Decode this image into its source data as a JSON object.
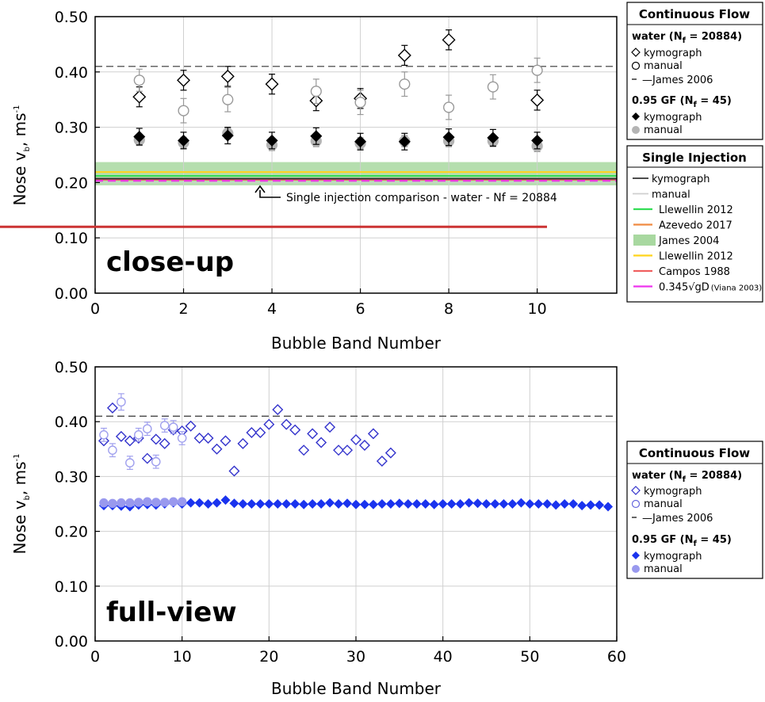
{
  "closeup": {
    "chart_data": {
      "type": "scatter",
      "panel_label": "close-up",
      "xlabel": "Bubble Band Number",
      "ylabel": "Nose v",
      "ylabel_sub": "b",
      "ylabel_unit": ", ms",
      "ylabel_sup": "-1",
      "xlim": [
        0,
        11.8
      ],
      "ylim": [
        0,
        0.5
      ],
      "xticks": [
        0,
        2,
        4,
        6,
        8,
        10
      ],
      "yticks": [
        "0.00",
        "0.10",
        "0.20",
        "0.30",
        "0.40",
        "0.50"
      ],
      "grid": true,
      "reference_lines": [
        {
          "name": "James 2006",
          "y": 0.41,
          "style": "dashed",
          "color": "#333333"
        }
      ],
      "reference_band": {
        "name": "James 2004",
        "y": [
          0.195,
          0.237
        ],
        "color": "#a8d8a0"
      },
      "single_injection_lines": [
        {
          "name": "Llewellin 2012 (green)",
          "y": 0.212,
          "color": "#33dd55"
        },
        {
          "name": "Azevedo 2017",
          "y": 0.207,
          "color": "#f08a40"
        },
        {
          "name": "Llewellin 2012 (yellow)",
          "y": 0.219,
          "color": "#ffd41a"
        },
        {
          "name": "Campos 1988",
          "y": 0.205,
          "color": "#f06060"
        },
        {
          "name": "0.345√gD",
          "y": 0.203,
          "color": "#ee33ee",
          "style": "dashed"
        },
        {
          "name": "kymograph",
          "y": 0.207,
          "color": "#333333"
        }
      ],
      "annotation": "Single injection comparison - water - Nf = 20884",
      "series": [
        {
          "name": "water kymograph",
          "marker": "open-diamond",
          "color": "#000000",
          "x": [
            1,
            2,
            3,
            4,
            5,
            6,
            7,
            8,
            10
          ],
          "y": [
            0.355,
            0.385,
            0.392,
            0.378,
            0.348,
            0.352,
            0.43,
            0.458,
            0.349
          ],
          "err": [
            0.018,
            0.018,
            0.018,
            0.018,
            0.018,
            0.018,
            0.018,
            0.018,
            0.018
          ]
        },
        {
          "name": "water manual",
          "marker": "open-circle",
          "color": "#999999",
          "x": [
            1,
            2,
            3,
            5,
            6,
            7,
            8,
            9,
            10
          ],
          "y": [
            0.385,
            0.33,
            0.35,
            0.365,
            0.345,
            0.378,
            0.336,
            0.373,
            0.403
          ],
          "err": [
            0.02,
            0.022,
            0.022,
            0.022,
            0.022,
            0.022,
            0.022,
            0.022,
            0.022
          ]
        },
        {
          "name": "0.95 GF manual",
          "marker": "filled-circle",
          "color": "#b4b4b4",
          "x": [
            1,
            2,
            3,
            4,
            5,
            6,
            7,
            8,
            9,
            10
          ],
          "y": [
            0.277,
            0.272,
            0.289,
            0.268,
            0.275,
            0.271,
            0.275,
            0.275,
            0.275,
            0.266
          ],
          "err": [
            0.01,
            0.01,
            0.01,
            0.01,
            0.01,
            0.01,
            0.01,
            0.01,
            0.01,
            0.01
          ]
        },
        {
          "name": "0.95 GF kymograph",
          "marker": "filled-diamond",
          "color": "#000000",
          "x": [
            1,
            2,
            3,
            4,
            5,
            6,
            7,
            8,
            9,
            10
          ],
          "y": [
            0.283,
            0.276,
            0.285,
            0.276,
            0.284,
            0.274,
            0.274,
            0.282,
            0.281,
            0.276
          ],
          "err": [
            0.015,
            0.015,
            0.015,
            0.015,
            0.015,
            0.015,
            0.015,
            0.015,
            0.015,
            0.015
          ]
        }
      ]
    },
    "legend_cf": {
      "title": "Continuous Flow",
      "water_head": "water (N",
      "water_sub": "f",
      "water_tail": " = 20884)",
      "items_water": [
        "kymograph",
        "manual",
        "—James 2006"
      ],
      "gf_head": "0.95 GF (N",
      "gf_sub": "f",
      "gf_tail": " = 45)",
      "items_gf": [
        "kymograph",
        "manual"
      ]
    },
    "legend_si": {
      "title": "Single Injection",
      "items": [
        {
          "label": "kymograph",
          "color": "#333333"
        },
        {
          "label": "manual",
          "color": "#cfcfcf"
        },
        {
          "label": "Llewellin 2012",
          "color": "#33dd55"
        },
        {
          "label": "Azevedo 2017",
          "color": "#f08a40"
        },
        {
          "label": "James 2004",
          "color": "#a8d8a0"
        },
        {
          "label": "Llewellin 2012",
          "color": "#ffd41a"
        },
        {
          "label": "Campos 1988",
          "color": "#f06060"
        },
        {
          "label": "0.345√gD",
          "color": "#ee33ee",
          "note": "(Viana 2003)"
        }
      ]
    }
  },
  "fullview": {
    "chart_data": {
      "type": "scatter",
      "panel_label": "full-view",
      "xlabel": "Bubble Band Number",
      "ylabel": "Nose v",
      "ylabel_sub": "b",
      "ylabel_unit": ", ms",
      "ylabel_sup": "-1",
      "xlim": [
        0,
        60
      ],
      "ylim": [
        0,
        0.5
      ],
      "xticks": [
        0,
        10,
        20,
        30,
        40,
        50,
        60
      ],
      "yticks": [
        "0.00",
        "0.10",
        "0.20",
        "0.30",
        "0.40",
        "0.50"
      ],
      "grid": true,
      "reference_lines": [
        {
          "name": "James 2006",
          "y": 0.41,
          "style": "dashed",
          "color": "#333333"
        }
      ],
      "series": [
        {
          "name": "water kymograph",
          "marker": "open-diamond",
          "color": "#3333cc",
          "x": [
            1,
            2,
            3,
            4,
            5,
            6,
            7,
            8,
            9,
            10,
            11,
            12,
            13,
            14,
            15,
            16,
            17,
            18,
            19,
            20,
            21,
            22,
            23,
            24,
            25,
            26,
            27,
            28,
            29,
            30,
            31,
            32,
            33,
            34
          ],
          "y": [
            0.365,
            0.425,
            0.373,
            0.365,
            0.37,
            0.333,
            0.368,
            0.36,
            0.385,
            0.383,
            0.392,
            0.37,
            0.37,
            0.35,
            0.365,
            0.31,
            0.36,
            0.38,
            0.38,
            0.395,
            0.422,
            0.395,
            0.385,
            0.348,
            0.378,
            0.362,
            0.39,
            0.348,
            0.348,
            0.367,
            0.357,
            0.378,
            0.328,
            0.343
          ]
        },
        {
          "name": "water manual",
          "marker": "open-circle",
          "color": "#a0a0ee",
          "x": [
            1,
            2,
            3,
            4,
            5,
            6,
            7,
            8,
            9,
            10
          ],
          "y": [
            0.376,
            0.348,
            0.436,
            0.325,
            0.376,
            0.387,
            0.327,
            0.393,
            0.39,
            0.37
          ],
          "err": [
            0.012,
            0.012,
            0.015,
            0.012,
            0.012,
            0.012,
            0.012,
            0.012,
            0.012,
            0.012
          ]
        },
        {
          "name": "0.95 GF kymograph",
          "marker": "filled-diamond",
          "color": "#1a33ee",
          "x": [
            1,
            2,
            3,
            4,
            5,
            6,
            7,
            8,
            9,
            10,
            11,
            12,
            13,
            14,
            15,
            16,
            17,
            18,
            19,
            20,
            21,
            22,
            23,
            24,
            25,
            26,
            27,
            28,
            29,
            30,
            31,
            32,
            33,
            34,
            35,
            36,
            37,
            38,
            39,
            40,
            41,
            42,
            43,
            44,
            45,
            46,
            47,
            48,
            49,
            50,
            51,
            52,
            53,
            54,
            55,
            56,
            57,
            58,
            59
          ],
          "y": [
            0.247,
            0.247,
            0.246,
            0.245,
            0.248,
            0.249,
            0.248,
            0.25,
            0.252,
            0.25,
            0.252,
            0.252,
            0.25,
            0.252,
            0.257,
            0.251,
            0.25,
            0.25,
            0.25,
            0.25,
            0.25,
            0.25,
            0.25,
            0.249,
            0.25,
            0.25,
            0.252,
            0.25,
            0.251,
            0.249,
            0.249,
            0.249,
            0.25,
            0.25,
            0.251,
            0.25,
            0.25,
            0.25,
            0.249,
            0.25,
            0.25,
            0.25,
            0.252,
            0.251,
            0.25,
            0.25,
            0.25,
            0.25,
            0.252,
            0.25,
            0.25,
            0.25,
            0.248,
            0.25,
            0.25,
            0.247,
            0.248,
            0.248,
            0.245
          ]
        },
        {
          "name": "0.95 GF manual",
          "marker": "filled-circle",
          "color": "#9999ee",
          "x": [
            1,
            2,
            3,
            4,
            5,
            6,
            7,
            8,
            9,
            10
          ],
          "y": [
            0.252,
            0.251,
            0.252,
            0.252,
            0.253,
            0.254,
            0.253,
            0.253,
            0.254,
            0.254
          ]
        }
      ]
    },
    "legend_cf": {
      "title": "Continuous Flow",
      "water_head": "water (N",
      "water_sub": "f",
      "water_tail": " = 20884)",
      "items_water": [
        "kymograph",
        "manual",
        "—James 2006"
      ],
      "gf_head": "0.95 GF (N",
      "gf_sub": "f",
      "gf_tail": " = 45)",
      "items_gf": [
        "kymograph",
        "manual"
      ]
    }
  },
  "overlay": {
    "color": "#cc3333",
    "y_value": 0.12
  }
}
